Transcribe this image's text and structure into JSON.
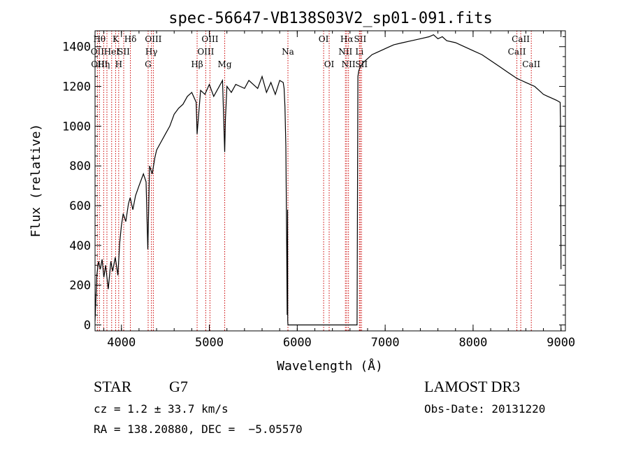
{
  "chart_data": {
    "type": "line",
    "title": "spec-56647-VB138S03V2_sp01-091.fits",
    "xlabel": "Wavelength (Å)",
    "ylabel": "Flux (relative)",
    "xlim": [
      3700,
      9050
    ],
    "ylim": [
      -30,
      1480
    ],
    "xticks": [
      4000,
      5000,
      6000,
      7000,
      8000,
      9000
    ],
    "yticks": [
      0,
      200,
      400,
      600,
      800,
      1000,
      1200,
      1400
    ],
    "grid": false,
    "series": [
      {
        "color": "#000000",
        "x": [
          3700,
          3720,
          3740,
          3760,
          3780,
          3800,
          3820,
          3850,
          3880,
          3900,
          3930,
          3960,
          3980,
          4000,
          4020,
          4050,
          4080,
          4100,
          4130,
          4160,
          4200,
          4250,
          4280,
          4300,
          4320,
          4350,
          4380,
          4400,
          4450,
          4500,
          4550,
          4600,
          4650,
          4700,
          4750,
          4800,
          4850,
          4861,
          4900,
          4950,
          5000,
          5050,
          5100,
          5150,
          5175,
          5183,
          5200,
          5250,
          5300,
          5350,
          5400,
          5450,
          5500,
          5550,
          5600,
          5650,
          5700,
          5750,
          5800,
          5840,
          5850,
          5860,
          5870,
          5880,
          5885,
          5890,
          5892,
          5894,
          5896,
          5898,
          5900,
          6000,
          6100,
          6200,
          6300,
          6400,
          6500,
          6600,
          6680,
          6690,
          6700,
          6720,
          6750,
          6800,
          6850,
          6900,
          6950,
          7000,
          7050,
          7100,
          7200,
          7300,
          7400,
          7500,
          7550,
          7600,
          7650,
          7700,
          7800,
          7900,
          8000,
          8100,
          8200,
          8300,
          8400,
          8500,
          8550,
          8600,
          8650,
          8700,
          8750,
          8800,
          8850,
          8900,
          8950,
          8990,
          8995,
          9000
        ],
        "y": [
          20,
          250,
          320,
          280,
          330,
          240,
          300,
          180,
          320,
          270,
          340,
          250,
          410,
          500,
          560,
          520,
          610,
          640,
          580,
          650,
          700,
          760,
          720,
          380,
          800,
          760,
          840,
          880,
          920,
          960,
          1000,
          1060,
          1090,
          1110,
          1150,
          1170,
          1120,
          960,
          1180,
          1160,
          1210,
          1150,
          1190,
          1230,
          870,
          1040,
          1200,
          1170,
          1210,
          1200,
          1190,
          1230,
          1210,
          1190,
          1250,
          1170,
          1220,
          1160,
          1230,
          1220,
          1190,
          1100,
          900,
          400,
          50,
          580,
          20,
          0,
          0,
          0,
          0,
          0,
          0,
          0,
          0,
          0,
          0,
          0,
          0,
          1250,
          1280,
          1300,
          1320,
          1340,
          1360,
          1370,
          1380,
          1390,
          1400,
          1410,
          1420,
          1430,
          1440,
          1450,
          1460,
          1440,
          1450,
          1430,
          1420,
          1400,
          1380,
          1360,
          1330,
          1300,
          1270,
          1240,
          1230,
          1220,
          1210,
          1200,
          1180,
          1160,
          1150,
          1140,
          1130,
          1120,
          1000,
          280
        ]
      }
    ],
    "lines": [
      {
        "x": 3727,
        "labels": [
          "OII"
        ],
        "row": [
          1
        ]
      },
      {
        "x": 3750,
        "labels": [
          "Hθ",
          "OIII"
        ],
        "row": [
          0,
          2
        ]
      },
      {
        "x": 3798,
        "labels": [
          "Hη"
        ],
        "row": [
          2
        ]
      },
      {
        "x": 3835,
        "labels": [],
        "row": []
      },
      {
        "x": 3889,
        "labels": [
          "HeI"
        ],
        "row": [
          1
        ]
      },
      {
        "x": 3934,
        "labels": [
          "K"
        ],
        "row": [
          0
        ]
      },
      {
        "x": 3969,
        "labels": [
          "H"
        ],
        "row": [
          2
        ]
      },
      {
        "x": 4026,
        "labels": [
          "SII"
        ],
        "row": [
          1
        ]
      },
      {
        "x": 4102,
        "labels": [
          "Hδ"
        ],
        "row": [
          0
        ]
      },
      {
        "x": 4304,
        "labels": [
          "G"
        ],
        "row": [
          2
        ]
      },
      {
        "x": 4341,
        "labels": [
          "Hγ"
        ],
        "row": [
          1
        ]
      },
      {
        "x": 4363,
        "labels": [
          "OIII"
        ],
        "row": [
          0
        ]
      },
      {
        "x": 4861,
        "labels": [
          "Hβ"
        ],
        "row": [
          2
        ]
      },
      {
        "x": 4959,
        "labels": [
          "OIII"
        ],
        "row": [
          1
        ]
      },
      {
        "x": 5007,
        "labels": [
          "OIII"
        ],
        "row": [
          0
        ]
      },
      {
        "x": 5175,
        "labels": [
          "Mg"
        ],
        "row": [
          2
        ]
      },
      {
        "x": 5894,
        "labels": [
          "Na"
        ],
        "row": [
          1
        ]
      },
      {
        "x": 6300,
        "labels": [
          "OI"
        ],
        "row": [
          0
        ]
      },
      {
        "x": 6363,
        "labels": [
          "OI"
        ],
        "row": [
          2
        ]
      },
      {
        "x": 6548,
        "labels": [
          "NII"
        ],
        "row": [
          1
        ]
      },
      {
        "x": 6563,
        "labels": [
          "Hα"
        ],
        "row": [
          0
        ]
      },
      {
        "x": 6583,
        "labels": [
          "NII"
        ],
        "row": [
          2
        ]
      },
      {
        "x": 6707,
        "labels": [
          "Li"
        ],
        "row": [
          1
        ]
      },
      {
        "x": 6716,
        "labels": [
          "SII"
        ],
        "row": [
          0
        ]
      },
      {
        "x": 6731,
        "labels": [
          "SII"
        ],
        "row": [
          2
        ]
      },
      {
        "x": 8498,
        "labels": [
          "CaII"
        ],
        "row": [
          1
        ]
      },
      {
        "x": 8542,
        "labels": [
          "CaII"
        ],
        "row": [
          0
        ]
      },
      {
        "x": 8662,
        "labels": [
          "CaII"
        ],
        "row": [
          2
        ]
      }
    ]
  },
  "info": {
    "class_label": "STAR",
    "subclass": "G7",
    "survey": "LAMOST DR3",
    "redshift": "cz = 1.2 ± 33.7 km/s",
    "obs_date": "Obs-Date: 20131220",
    "coords": "RA = 138.20880, DEC =  −5.05570"
  }
}
